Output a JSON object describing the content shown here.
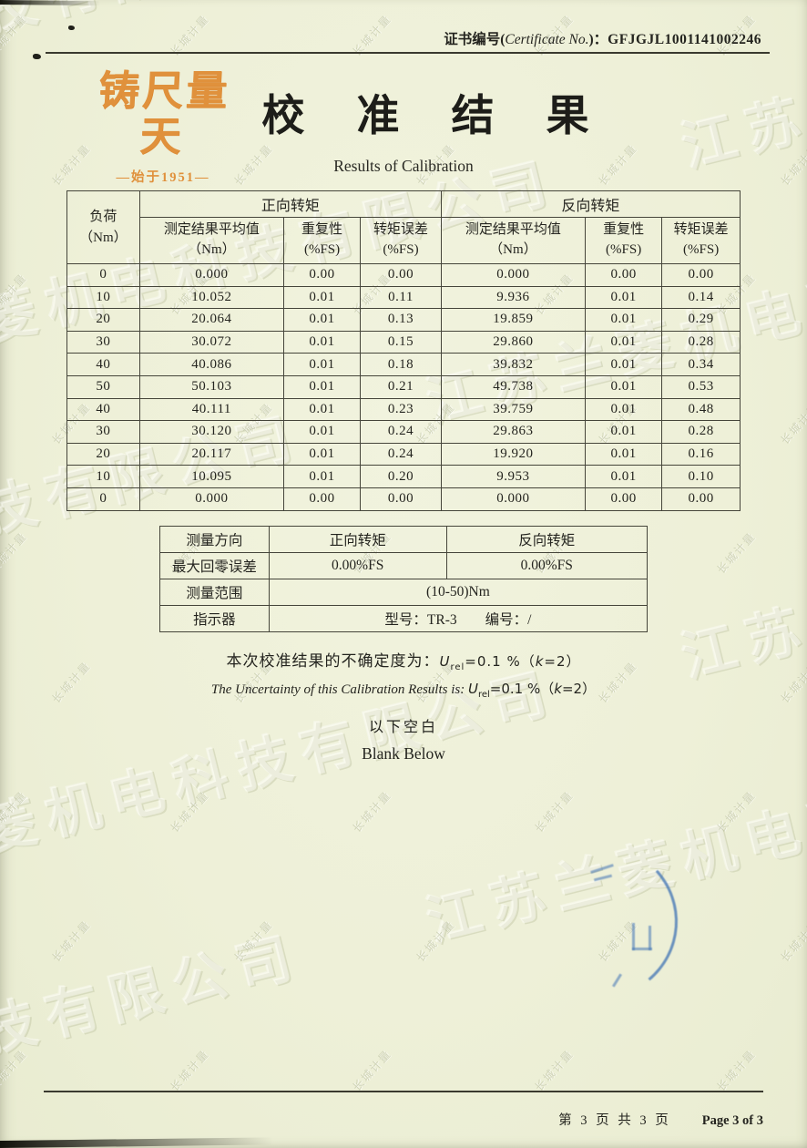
{
  "certificate": {
    "label_prefix": "证书编号(",
    "label_en": "Certificate No.",
    "label_suffix": ")：",
    "number": "GFJGJL1001141002246"
  },
  "logo": {
    "calligraphy": "铸尺量天",
    "tagline": "—始于1951—"
  },
  "title": {
    "cn": "校 准 结 果",
    "en": "Results of Calibration"
  },
  "main_table": {
    "load_header_line1": "负荷",
    "load_header_line2": "（Nm）",
    "forward_header": "正向转矩",
    "reverse_header": "反向转矩",
    "sub_avg_line1": "测定结果平均值",
    "sub_avg_line2": "（Nm）",
    "sub_rep_line1": "重复性",
    "sub_rep_line2": "(%FS)",
    "sub_err_line1": "转矩误差",
    "sub_err_line2": "(%FS)",
    "rows": [
      [
        "0",
        "0.000",
        "0.00",
        "0.00",
        "0.000",
        "0.00",
        "0.00"
      ],
      [
        "10",
        "10.052",
        "0.01",
        "0.11",
        "9.936",
        "0.01",
        "0.14"
      ],
      [
        "20",
        "20.064",
        "0.01",
        "0.13",
        "19.859",
        "0.01",
        "0.29"
      ],
      [
        "30",
        "30.072",
        "0.01",
        "0.15",
        "29.860",
        "0.01",
        "0.28"
      ],
      [
        "40",
        "40.086",
        "0.01",
        "0.18",
        "39.832",
        "0.01",
        "0.34"
      ],
      [
        "50",
        "50.103",
        "0.01",
        "0.21",
        "49.738",
        "0.01",
        "0.53"
      ],
      [
        "40",
        "40.111",
        "0.01",
        "0.23",
        "39.759",
        "0.01",
        "0.48"
      ],
      [
        "30",
        "30.120",
        "0.01",
        "0.24",
        "29.863",
        "0.01",
        "0.28"
      ],
      [
        "20",
        "20.117",
        "0.01",
        "0.24",
        "19.920",
        "0.01",
        "0.16"
      ],
      [
        "10",
        "10.095",
        "0.01",
        "0.20",
        "9.953",
        "0.01",
        "0.10"
      ],
      [
        "0",
        "0.000",
        "0.00",
        "0.00",
        "0.000",
        "0.00",
        "0.00"
      ]
    ]
  },
  "summary_table": {
    "rows": [
      {
        "label": "测量方向",
        "forward": "正向转矩",
        "reverse": "反向转矩"
      },
      {
        "label": "最大回零误差",
        "forward": "0.00%FS",
        "reverse": "0.00%FS"
      },
      {
        "label": "测量范围",
        "value": "(10-50)Nm"
      },
      {
        "label": "指示器",
        "value": "型号：TR-3　　编号：/"
      }
    ]
  },
  "uncertainty": {
    "cn_label": "本次校准结果的不确定度为：",
    "en_label": "The Uncertainty of this Calibration Results is: ",
    "symbol": "U",
    "subscript": "rel",
    "value": "=0.1 %",
    "k_open": "（",
    "k_var": "k",
    "k_close": "=2）"
  },
  "blank": {
    "cn": "以下空白",
    "en": "Blank Below"
  },
  "footer": {
    "page_cn": "第 3 页 共 3 页",
    "page_en": "Page 3 of 3"
  },
  "watermark": {
    "company": "江苏兰菱机电科技有限公司",
    "security": "长城计量"
  },
  "colors": {
    "paper": "#eef0d8",
    "accent_orange": "#e0913c",
    "stamp_blue": "#3e71b4",
    "table_line": "#45453a"
  }
}
